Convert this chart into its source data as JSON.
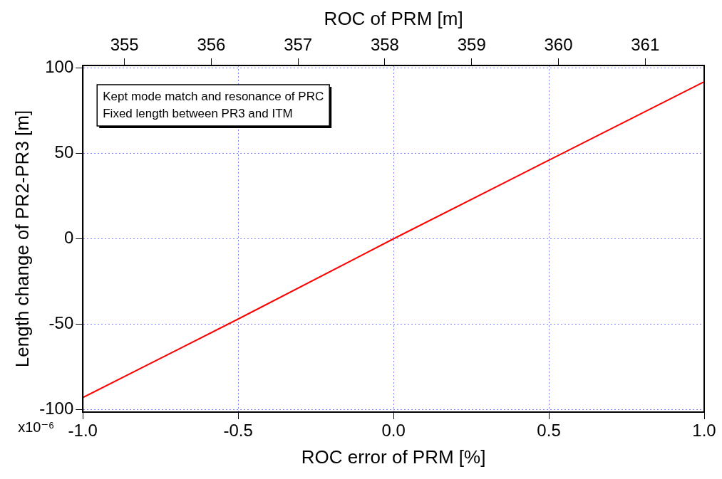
{
  "chart_data": {
    "type": "line",
    "xlabel": "ROC error of PRM [%]",
    "ylabel": "Length change of PR2-PR3 [m]",
    "x2label": "ROC of PRM [m]",
    "x": [
      -1,
      -0.5,
      0,
      0.5,
      1
    ],
    "series": [
      {
        "color": "#ff0000",
        "values": [
          -93,
          -47,
          0,
          46,
          92
        ]
      }
    ],
    "xlim": [
      -1,
      1
    ],
    "xticks": [
      {
        "value": -1,
        "label": "-1.0"
      },
      {
        "value": -0.5,
        "label": "-0.5"
      },
      {
        "value": 0,
        "label": "0.0"
      },
      {
        "value": 0.5,
        "label": "0.5"
      },
      {
        "value": 1,
        "label": "1.0"
      }
    ],
    "x2lim": [
      354.52,
      361.68
    ],
    "x2ticks": [
      355,
      356,
      357,
      358,
      359,
      360,
      361
    ],
    "ylim": [
      -101.5,
      101.5
    ],
    "yticks": [
      -100,
      -50,
      0,
      50,
      100
    ],
    "grid": true,
    "legend": false,
    "marker": "none",
    "line_style": "solid",
    "annotations": [
      "Kept mode match and resonance of PRC",
      "Fixed length between PR3 and ITM",
      "x10⁻⁶"
    ]
  }
}
